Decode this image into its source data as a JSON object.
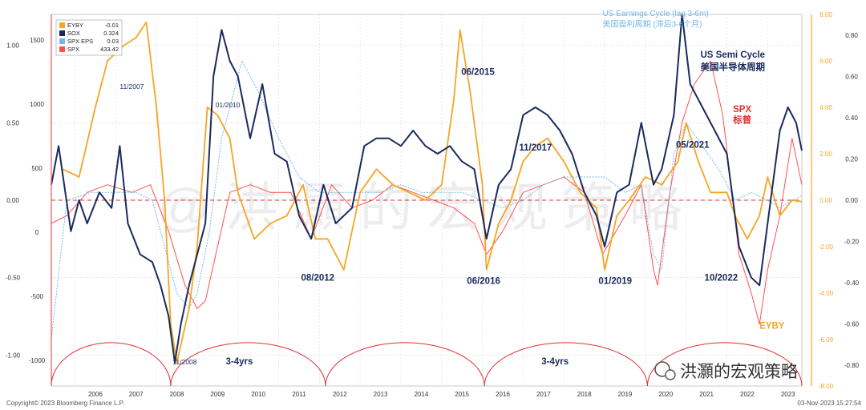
{
  "chart_data": {
    "type": "line",
    "legend": {
      "placement": "top-left",
      "entries": [
        {
          "key": "eyby",
          "name": "EYBY",
          "last": "-0.01",
          "color": "#f5a623"
        },
        {
          "key": "sox",
          "name": "SOX",
          "last": "0.324",
          "color": "#1a2a5e"
        },
        {
          "key": "spx_eps",
          "name": "SPX EPS",
          "last": "0.03",
          "color": "#74b9e8"
        },
        {
          "key": "spx",
          "name": "SPX",
          "last": "433.42",
          "color": "#ff5050"
        }
      ]
    },
    "x_ticks": [
      "2006",
      "2007",
      "2008",
      "2009",
      "2010",
      "2011",
      "2012",
      "2013",
      "2014",
      "2015",
      "2016",
      "2017",
      "2018",
      "2019",
      "2020",
      "2021",
      "2022",
      "2023"
    ],
    "x_range": [
      2005.42,
      2023.84
    ],
    "axes": {
      "left_outer": {
        "ticks": [
          "1500",
          "1000",
          "500",
          "0",
          "-500",
          "-1000"
        ],
        "range": [
          -1200,
          1700
        ]
      },
      "left_inner": {
        "ticks": [
          "1.00",
          "0.50",
          "0.00",
          "-0.50",
          "-1.00"
        ],
        "range": [
          -1.2,
          1.2
        ]
      },
      "right_outer": {
        "ticks": [
          "8.00",
          "6.00",
          "4.00",
          "2.00",
          "0.00",
          "-2.00",
          "-4.00",
          "-6.00",
          "-8.00"
        ],
        "range": [
          -8,
          8
        ]
      },
      "right_inner": {
        "ticks": [
          "0.80",
          "0.60",
          "0.40",
          "0.20",
          "0.00",
          "-0.20",
          "-0.40",
          "-0.60",
          "-0.80"
        ],
        "range": [
          -0.9,
          0.9
        ]
      }
    },
    "grid": true,
    "zero_line": {
      "color": "#e03030",
      "style": "dashed"
    },
    "series": [
      {
        "key": "spx",
        "axis": "left_inner",
        "color": "#ff5050",
        "x": [
          2005.42,
          2005.8,
          2006.3,
          2006.8,
          2007.4,
          2007.85,
          2008.3,
          2008.7,
          2009.0,
          2009.2,
          2009.5,
          2009.8,
          2010.3,
          2010.8,
          2011.3,
          2011.8,
          2012.3,
          2012.8,
          2013.3,
          2013.8,
          2014.3,
          2014.8,
          2015.3,
          2015.8,
          2016.1,
          2016.5,
          2017.0,
          2017.5,
          2018.0,
          2018.5,
          2018.95,
          2019.5,
          2019.9,
          2020.2,
          2020.3,
          2020.6,
          2020.9,
          2021.2,
          2021.6,
          2021.9,
          2022.3,
          2022.6,
          2022.8,
          2023.0,
          2023.3,
          2023.6,
          2023.84
        ],
        "y": [
          -0.15,
          -0.1,
          0.05,
          0.1,
          0.05,
          0.1,
          -0.2,
          -0.55,
          -0.7,
          -0.65,
          -0.3,
          0.05,
          0.1,
          0.05,
          0.05,
          -0.25,
          0.1,
          -0.05,
          0.0,
          0.1,
          0.05,
          0.0,
          -0.05,
          -0.15,
          -0.35,
          -0.2,
          0.05,
          0.1,
          0.15,
          0.05,
          -0.35,
          -0.1,
          0.1,
          -0.45,
          -0.55,
          0.05,
          0.5,
          0.75,
          0.9,
          0.55,
          -0.35,
          -0.6,
          -0.8,
          -0.45,
          -0.1,
          0.4,
          0.1
        ]
      },
      {
        "key": "spx_eps",
        "axis": "left_inner",
        "color": "#74b9e8",
        "x": [
          2005.42,
          2005.8,
          2006.4,
          2007.0,
          2007.5,
          2007.9,
          2008.2,
          2008.5,
          2008.8,
          2009.0,
          2009.3,
          2009.6,
          2009.8,
          2010.1,
          2010.5,
          2011.0,
          2011.5,
          2012.0,
          2012.5,
          2013.0,
          2013.5,
          2014.0,
          2014.5,
          2015.0,
          2015.5,
          2016.0,
          2016.5,
          2017.0,
          2017.5,
          2018.0,
          2018.5,
          2019.0,
          2019.5,
          2019.9,
          2020.2,
          2020.4,
          2020.7,
          2021.0,
          2021.4,
          2021.8,
          2022.2,
          2022.6,
          2023.0,
          2023.3,
          2023.6,
          2023.84
        ],
        "y": [
          -0.9,
          0.0,
          0.05,
          0.05,
          0.05,
          0.0,
          -0.3,
          -0.6,
          -0.7,
          -0.6,
          -0.2,
          0.4,
          0.6,
          0.9,
          0.7,
          0.4,
          0.15,
          0.05,
          0.05,
          0.05,
          0.05,
          0.1,
          0.05,
          0.05,
          0.05,
          0.0,
          -0.05,
          0.0,
          0.1,
          0.15,
          0.15,
          0.15,
          0.05,
          0.1,
          -0.35,
          -0.45,
          0.3,
          0.5,
          0.35,
          0.2,
          0.0,
          0.05,
          0.0,
          -0.05,
          0.0,
          0.03
        ]
      },
      {
        "key": "eyby",
        "axis": "left_inner",
        "color": "#f5a623",
        "x": [
          2005.7,
          2006.1,
          2006.5,
          2006.8,
          2007.2,
          2007.5,
          2007.75,
          2008.0,
          2008.2,
          2008.35,
          2008.5,
          2008.8,
          2009.0,
          2009.25,
          2009.5,
          2009.8,
          2010.0,
          2010.4,
          2010.8,
          2011.2,
          2011.6,
          2011.9,
          2012.2,
          2012.6,
          2013.0,
          2013.4,
          2013.8,
          2014.2,
          2014.6,
          2015.0,
          2015.3,
          2015.45,
          2015.7,
          2016.0,
          2016.1,
          2016.4,
          2016.7,
          2017.0,
          2017.3,
          2017.6,
          2018.0,
          2018.4,
          2018.8,
          2019.0,
          2019.3,
          2019.6,
          2020.0,
          2020.4,
          2020.8,
          2021.0,
          2021.3,
          2021.6,
          2022.0,
          2022.2,
          2022.5,
          2022.8,
          2023.0,
          2023.3,
          2023.6,
          2023.84
        ],
        "y": [
          0.2,
          0.15,
          0.6,
          0.9,
          1.0,
          1.05,
          1.15,
          0.6,
          0.0,
          -0.8,
          -1.05,
          -0.7,
          -0.3,
          0.6,
          0.55,
          0.4,
          0.05,
          -0.25,
          -0.15,
          -0.1,
          0.1,
          -0.25,
          -0.25,
          -0.45,
          0.05,
          0.2,
          0.1,
          0.05,
          0.0,
          0.1,
          0.65,
          1.1,
          0.7,
          0.1,
          -0.45,
          -0.15,
          0.0,
          0.25,
          0.35,
          0.4,
          0.25,
          0.05,
          -0.05,
          -0.45,
          -0.1,
          0.0,
          0.15,
          0.1,
          0.25,
          0.5,
          0.25,
          0.05,
          0.05,
          -0.1,
          -0.25,
          -0.1,
          0.15,
          -0.1,
          0.0,
          -0.01
        ]
      },
      {
        "key": "sox",
        "axis": "left_inner",
        "color": "#1a2a5e",
        "x": [
          2005.42,
          2005.6,
          2005.9,
          2006.1,
          2006.3,
          2006.6,
          2006.9,
          2007.1,
          2007.3,
          2007.6,
          2007.9,
          2008.1,
          2008.3,
          2008.45,
          2008.6,
          2008.8,
          2009.0,
          2009.2,
          2009.4,
          2009.6,
          2009.8,
          2010.0,
          2010.3,
          2010.6,
          2010.9,
          2011.2,
          2011.5,
          2011.8,
          2012.1,
          2012.4,
          2012.8,
          2013.1,
          2013.4,
          2013.7,
          2014.0,
          2014.3,
          2014.6,
          2014.9,
          2015.2,
          2015.5,
          2015.8,
          2016.1,
          2016.4,
          2016.7,
          2017.0,
          2017.3,
          2017.6,
          2017.9,
          2018.2,
          2018.5,
          2018.8,
          2019.0,
          2019.3,
          2019.6,
          2019.9,
          2020.2,
          2020.4,
          2020.7,
          2020.9,
          2021.1,
          2021.4,
          2021.7,
          2022.0,
          2022.3,
          2022.6,
          2022.8,
          2023.0,
          2023.3,
          2023.5,
          2023.7,
          2023.84
        ],
        "y": [
          0.1,
          0.35,
          -0.2,
          0.0,
          -0.15,
          0.05,
          -0.05,
          0.35,
          -0.15,
          -0.35,
          -0.4,
          -0.55,
          -0.75,
          -1.05,
          -0.8,
          -0.55,
          -0.35,
          -0.15,
          0.8,
          1.1,
          0.9,
          0.8,
          0.4,
          0.75,
          0.3,
          0.25,
          -0.1,
          -0.25,
          0.1,
          -0.15,
          -0.05,
          0.35,
          0.4,
          0.4,
          0.35,
          0.45,
          0.35,
          0.3,
          0.35,
          0.25,
          0.2,
          -0.25,
          0.1,
          0.2,
          0.55,
          0.6,
          0.55,
          0.45,
          0.3,
          0.05,
          -0.1,
          -0.3,
          0.05,
          0.1,
          0.5,
          0.1,
          0.2,
          0.55,
          1.2,
          0.75,
          0.6,
          0.45,
          0.3,
          -0.3,
          -0.5,
          -0.55,
          -0.15,
          0.45,
          0.6,
          0.5,
          0.32
        ]
      }
    ],
    "cycle_arcs": {
      "color": "#e03030",
      "x_bounds": [
        2005.42,
        2008.35,
        2012.15,
        2016.05,
        2020.05,
        2023.84
      ],
      "y_top": -0.92,
      "y_base": -1.2
    },
    "annotations": [
      {
        "text": "11/2007",
        "x": 2007.1,
        "y": 0.72,
        "color": "#1a2a5e",
        "style": "small"
      },
      {
        "text": "01/2010",
        "x": 2009.45,
        "y": 0.6,
        "color": "#1a2a5e",
        "style": "small"
      },
      {
        "text": "11/2008",
        "x": 2008.4,
        "y": -1.06,
        "color": "#1a2a5e",
        "style": "small"
      },
      {
        "text": "06/2015",
        "x": 2015.48,
        "y": 0.81,
        "color": "#1a2a5e",
        "style": "bold"
      },
      {
        "text": "11/2017",
        "x": 2016.9,
        "y": 0.32,
        "color": "#1a2a5e",
        "style": "bold"
      },
      {
        "text": "08/2012",
        "x": 2011.55,
        "y": -0.52,
        "color": "#1a2a5e",
        "style": "bold"
      },
      {
        "text": "06/2016",
        "x": 2015.62,
        "y": -0.54,
        "color": "#1a2a5e",
        "style": "bold"
      },
      {
        "text": "01/2019",
        "x": 2018.85,
        "y": -0.54,
        "color": "#1a2a5e",
        "style": "bold"
      },
      {
        "text": "05/2021",
        "x": 2020.75,
        "y": 0.34,
        "color": "#1a2a5e",
        "style": "bold"
      },
      {
        "text": "10/2022",
        "x": 2021.45,
        "y": -0.52,
        "color": "#1a2a5e",
        "style": "bold"
      },
      {
        "text": "3-4yrs",
        "x": 2009.7,
        "y": -1.06,
        "color": "#1a2a5e",
        "style": "bold"
      },
      {
        "text": "3-4yrs",
        "x": 2017.45,
        "y": -1.06,
        "color": "#1a2a5e",
        "style": "bold"
      },
      {
        "text": "US Earnings Cycle (lag 3-6m)",
        "x": 2018.95,
        "y": 1.19,
        "color": "#74b9e8",
        "style": "mono"
      },
      {
        "text": "美国盈利周期 (滞后3-6个月)",
        "x": 2018.95,
        "y": 1.12,
        "color": "#74b9e8",
        "style": "mono"
      },
      {
        "text": "US Semi Cycle",
        "x": 2021.35,
        "y": 0.92,
        "color": "#1a2a5e",
        "style": "monobold"
      },
      {
        "text": "美国半导体周期",
        "x": 2021.35,
        "y": 0.84,
        "color": "#1a2a5e",
        "style": "monobold"
      },
      {
        "text": "SPX",
        "x": 2022.15,
        "y": 0.57,
        "color": "#e03030",
        "style": "monobold"
      },
      {
        "text": "标普",
        "x": 2022.15,
        "y": 0.5,
        "color": "#e03030",
        "style": "monobold"
      },
      {
        "text": "EYBY",
        "x": 2022.8,
        "y": -0.83,
        "color": "#f5a623",
        "style": "monobold"
      }
    ],
    "watermark": "@洪灝的宏观策略",
    "footer_left": "Copyright© 2023 Bloomberg Finance L.P.",
    "footer_right": "03-Nov-2023 15:27:54",
    "brand_text": "洪灝的宏观策略"
  }
}
